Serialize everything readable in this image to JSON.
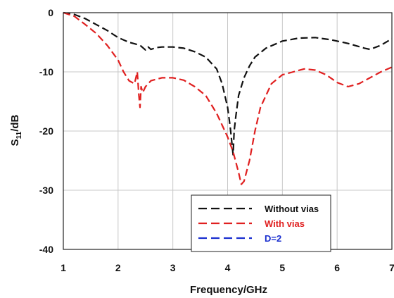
{
  "chart_data": {
    "type": "line",
    "title": "",
    "xlabel": "Frequency/GHz",
    "ylabel_main": "S",
    "ylabel_sub": "11",
    "ylabel_rest": "/dB",
    "xlim": [
      1,
      7
    ],
    "ylim": [
      -40,
      0
    ],
    "xticks": [
      1,
      2,
      3,
      4,
      5,
      6,
      7
    ],
    "yticks": [
      0,
      -10,
      -20,
      -30,
      -40
    ],
    "grid": true,
    "legend_position": "bottom-right",
    "series": [
      {
        "name": "Without vias",
        "color": "#111111",
        "x": [
          1.0,
          1.2,
          1.4,
          1.6,
          1.8,
          2.0,
          2.2,
          2.4,
          2.5,
          2.55,
          2.6,
          2.7,
          2.8,
          3.0,
          3.2,
          3.4,
          3.6,
          3.8,
          3.9,
          4.0,
          4.05,
          4.1,
          4.12,
          4.15,
          4.2,
          4.3,
          4.4,
          4.5,
          4.7,
          5.0,
          5.3,
          5.6,
          5.9,
          6.2,
          6.5,
          6.6,
          6.8,
          7.0
        ],
        "y": [
          0,
          -0.3,
          -1.0,
          -2.0,
          -3.0,
          -4.2,
          -5.0,
          -5.5,
          -6.3,
          -5.8,
          -6.2,
          -5.9,
          -5.8,
          -5.8,
          -6.0,
          -6.6,
          -7.5,
          -9.5,
          -12.0,
          -16.0,
          -19.5,
          -24.0,
          -20.0,
          -17.5,
          -14.0,
          -11.0,
          -9.0,
          -7.5,
          -6.0,
          -4.8,
          -4.3,
          -4.2,
          -4.6,
          -5.2,
          -6.0,
          -6.2,
          -5.5,
          -4.4
        ]
      },
      {
        "name": "With vias",
        "color": "#e02020",
        "x": [
          1.0,
          1.2,
          1.4,
          1.6,
          1.8,
          2.0,
          2.1,
          2.2,
          2.3,
          2.35,
          2.38,
          2.4,
          2.42,
          2.45,
          2.5,
          2.6,
          2.8,
          3.0,
          3.2,
          3.4,
          3.6,
          3.8,
          3.9,
          4.0,
          4.1,
          4.2,
          4.25,
          4.3,
          4.4,
          4.5,
          4.6,
          4.8,
          5.0,
          5.2,
          5.4,
          5.6,
          5.8,
          6.0,
          6.2,
          6.4,
          6.6,
          6.8,
          7.0
        ],
        "y": [
          0,
          -0.6,
          -2.0,
          -3.5,
          -5.5,
          -8.0,
          -10.0,
          -11.5,
          -12.0,
          -10.0,
          -14.0,
          -16.0,
          -12.5,
          -13.5,
          -12.5,
          -11.5,
          -11.0,
          -11.0,
          -11.4,
          -12.5,
          -14.0,
          -17.0,
          -19.0,
          -21.0,
          -23.5,
          -27.0,
          -29.0,
          -28.5,
          -25.0,
          -20.0,
          -16.0,
          -12.0,
          -10.5,
          -10.0,
          -9.5,
          -9.7,
          -10.5,
          -11.8,
          -12.5,
          -12.0,
          -11.0,
          -10.0,
          -9.2
        ]
      },
      {
        "name": "D=2",
        "color": "#1a2fcf",
        "x": [],
        "y": []
      }
    ]
  }
}
